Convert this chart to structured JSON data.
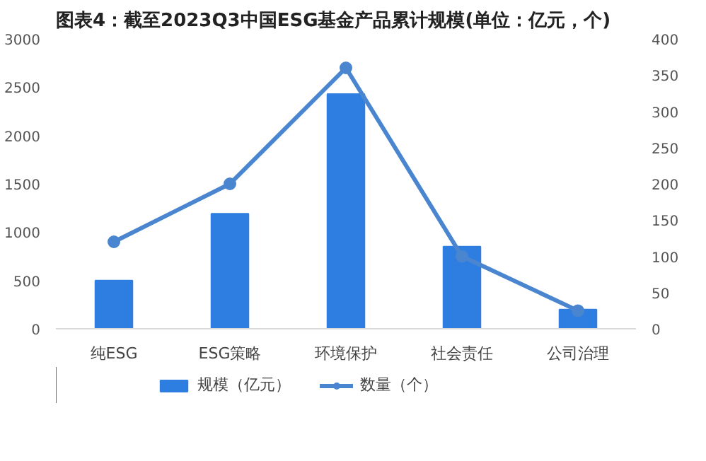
{
  "chart_data": {
    "type": "bar",
    "title": "图表4：截至2023Q3中国ESG基金产品累计规模(单位：亿元，个)",
    "categories": [
      "纯ESG",
      "ESG策略",
      "环境保护",
      "社会责任",
      "公司治理"
    ],
    "series": [
      {
        "name": "规模（亿元）",
        "color": "#2e7de0",
        "values": [
          500,
          1190,
          2430,
          850,
          200
        ]
      },
      {
        "name": "数量（个）",
        "type": "line",
        "axis": "y2",
        "color": "#4a86d0",
        "marker": "circle",
        "values": [
          120,
          200,
          360,
          100,
          25
        ]
      }
    ],
    "ylim": [
      0,
      3000
    ],
    "yticks": [
      0,
      500,
      1000,
      1500,
      2000,
      2500,
      3000
    ],
    "y2lim": [
      0,
      400
    ],
    "y2ticks": [
      0,
      50,
      100,
      150,
      200,
      250,
      300,
      350,
      400
    ],
    "grid": false,
    "legend": "bottom"
  }
}
